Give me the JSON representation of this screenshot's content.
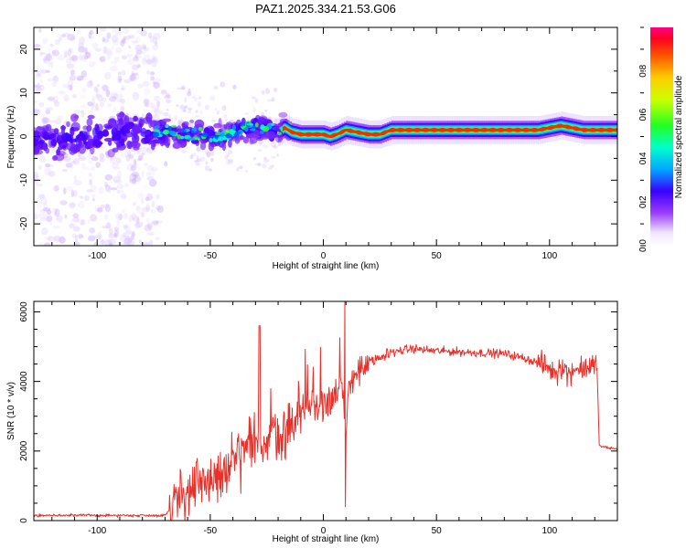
{
  "title": "PAZ1.2025.334.21.53.G06",
  "chart_data": [
    {
      "type": "heatmap",
      "xlabel": "Height of straight line (km)",
      "ylabel": "Frequency (Hz)",
      "xlim": [
        -128,
        130
      ],
      "ylim": [
        -25,
        25
      ],
      "xticks": [
        "-100",
        "-50",
        "0",
        "50",
        "100"
      ],
      "yticks": [
        "-20",
        "-10",
        "0",
        "10",
        "20"
      ],
      "ridge": {
        "x": [
          -128,
          -110,
          -90,
          -75,
          -65,
          -55,
          -45,
          -40,
          -35,
          -30,
          -25,
          -20,
          -17,
          -14,
          -10,
          -5,
          0,
          3,
          6,
          10,
          15,
          20,
          25,
          30,
          40,
          60,
          80,
          95,
          100,
          105,
          110,
          115,
          120,
          130
        ],
        "freq": [
          -1,
          0,
          0.5,
          0.5,
          1,
          0,
          0,
          1,
          2,
          2.5,
          2,
          1,
          2,
          1,
          0.5,
          0.5,
          0.5,
          0,
          0.5,
          1.5,
          1,
          0.5,
          0.5,
          1.5,
          1.5,
          1.5,
          1.5,
          1.5,
          2,
          2.5,
          2,
          1.5,
          1.5,
          1.5
        ]
      },
      "colorbar": {
        "label": "Normalized spectral amplitude",
        "ticks": [
          "0.0",
          "0.2",
          "0.4",
          "0.6",
          "0.8"
        ],
        "range": [
          0,
          1
        ]
      }
    },
    {
      "type": "line",
      "xlabel": "Height of straight line (km)",
      "ylabel": "SNR (10 * v/v)",
      "xlim": [
        -128,
        130
      ],
      "ylim": [
        0,
        6300
      ],
      "xticks": [
        "-100",
        "-50",
        "0",
        "50",
        "100"
      ],
      "yticks": [
        "0",
        "2000",
        "4000",
        "6000"
      ],
      "series": [
        {
          "name": "SNR",
          "color": "#e8302a",
          "x": [
            -128,
            -110,
            -90,
            -70,
            -67,
            -64,
            -60,
            -55,
            -50,
            -45,
            -40,
            -35,
            -31,
            -29,
            -27,
            -25,
            -22,
            -20,
            -18,
            -15,
            -10,
            -5,
            0,
            4,
            7,
            9,
            10,
            11,
            12,
            15,
            20,
            25,
            30,
            35,
            40,
            45,
            50,
            60,
            70,
            80,
            90,
            100,
            103,
            105,
            108,
            112,
            116,
            120,
            121,
            122,
            125,
            130
          ],
          "y": [
            150,
            150,
            150,
            150,
            400,
            800,
            700,
            1000,
            1200,
            1300,
            1600,
            1900,
            2200,
            2000,
            2400,
            2100,
            2600,
            2700,
            2300,
            2800,
            3100,
            3300,
            3400,
            3600,
            3700,
            3500,
            2200,
            3800,
            4000,
            4300,
            4500,
            4650,
            4850,
            4900,
            4950,
            4900,
            4880,
            4850,
            4820,
            4800,
            4650,
            4400,
            4300,
            4500,
            4250,
            4350,
            4400,
            4450,
            4400,
            2150,
            2100,
            2050
          ]
        }
      ]
    }
  ]
}
